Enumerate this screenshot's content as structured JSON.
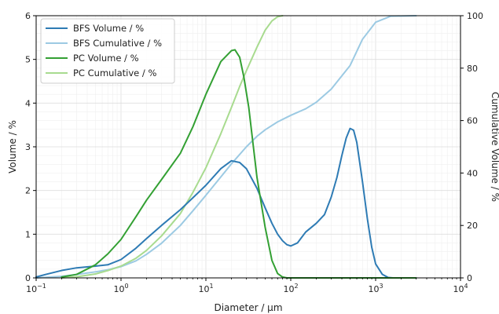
{
  "chart_data": {
    "type": "line",
    "xscale": "log",
    "xlim": [
      0.1,
      10000
    ],
    "ylim": [
      0,
      6
    ],
    "y2lim": [
      0,
      100
    ],
    "grid": "major+minor",
    "legend_position": "upper-left",
    "xlabel": "Diameter / μm",
    "ylabel": "Volume / %",
    "y2label": "Cumulative Volume / %",
    "xticks": [
      {
        "base": "10",
        "exp": "−1",
        "value": 0.1
      },
      {
        "base": "10",
        "exp": "0",
        "value": 1
      },
      {
        "base": "10",
        "exp": "1",
        "value": 10
      },
      {
        "base": "10",
        "exp": "2",
        "value": 100
      },
      {
        "base": "10",
        "exp": "3",
        "value": 1000
      },
      {
        "base": "10",
        "exp": "4",
        "value": 10000
      }
    ],
    "yticks": [
      "0",
      "1",
      "2",
      "3",
      "4",
      "5",
      "6"
    ],
    "y2ticks": [
      "0",
      "20",
      "40",
      "60",
      "80",
      "100"
    ],
    "series": [
      {
        "name": "BFS Volume / %",
        "axis": "left",
        "color": "#2e7bb4",
        "x": [
          0.1,
          0.13,
          0.2,
          0.3,
          0.5,
          0.7,
          1.0,
          1.5,
          2,
          3,
          5,
          7,
          10,
          15,
          20,
          25,
          30,
          40,
          50,
          60,
          70,
          80,
          90,
          100,
          120,
          150,
          200,
          250,
          300,
          350,
          400,
          450,
          500,
          550,
          600,
          700,
          800,
          900,
          1000,
          1200,
          1400,
          1600,
          2000,
          3000
        ],
        "y": [
          0.02,
          0.08,
          0.17,
          0.23,
          0.27,
          0.3,
          0.42,
          0.68,
          0.9,
          1.2,
          1.56,
          1.83,
          2.12,
          2.5,
          2.68,
          2.64,
          2.5,
          2.05,
          1.6,
          1.25,
          1.0,
          0.85,
          0.76,
          0.73,
          0.8,
          1.05,
          1.25,
          1.45,
          1.85,
          2.3,
          2.8,
          3.2,
          3.42,
          3.38,
          3.1,
          2.2,
          1.35,
          0.7,
          0.32,
          0.08,
          0.01,
          0.0,
          0.0,
          0.0
        ]
      },
      {
        "name": "BFS Cumulative / %",
        "axis": "right",
        "color": "#9ccae3",
        "x": [
          0.1,
          0.2,
          0.3,
          0.5,
          0.7,
          1,
          1.5,
          2,
          3,
          5,
          7,
          10,
          15,
          20,
          30,
          40,
          50,
          70,
          100,
          150,
          200,
          300,
          500,
          700,
          1000,
          1500,
          3000
        ],
        "y": [
          0,
          0.6,
          1.3,
          2.3,
          3.1,
          4.3,
          6.5,
          9.0,
          13.2,
          20.0,
          25.5,
          31.5,
          38.5,
          43.5,
          50.0,
          54.0,
          56.5,
          59.5,
          62.0,
          64.5,
          67.0,
          72.0,
          81.0,
          91.0,
          97.5,
          99.8,
          100
        ]
      },
      {
        "name": "PC Volume / %",
        "axis": "left",
        "color": "#33a033",
        "x": [
          0.2,
          0.3,
          0.5,
          0.7,
          1.0,
          1.5,
          2,
          3,
          5,
          7,
          10,
          15,
          20,
          22,
          25,
          28,
          32,
          40,
          50,
          60,
          70,
          80,
          90,
          100,
          150,
          300,
          1000,
          3000
        ],
        "y": [
          0.02,
          0.08,
          0.3,
          0.55,
          0.88,
          1.4,
          1.78,
          2.25,
          2.85,
          3.45,
          4.2,
          4.95,
          5.2,
          5.22,
          5.05,
          4.6,
          3.9,
          2.3,
          1.15,
          0.4,
          0.1,
          0.02,
          0.0,
          0.0,
          0.0,
          0.0,
          0.0,
          0.0
        ]
      },
      {
        "name": "PC Cumulative / %",
        "axis": "right",
        "color": "#a8db8f",
        "x": [
          0.2,
          0.3,
          0.5,
          0.7,
          1,
          1.5,
          2,
          3,
          5,
          7,
          10,
          15,
          20,
          25,
          30,
          40,
          50,
          60,
          70,
          80
        ],
        "y": [
          0,
          0.4,
          1.5,
          2.8,
          4.5,
          7.5,
          10.5,
          16.0,
          24.5,
          32.5,
          42.0,
          55.0,
          65.0,
          73.0,
          79.0,
          88.0,
          94.5,
          98.0,
          99.6,
          100
        ]
      }
    ]
  }
}
